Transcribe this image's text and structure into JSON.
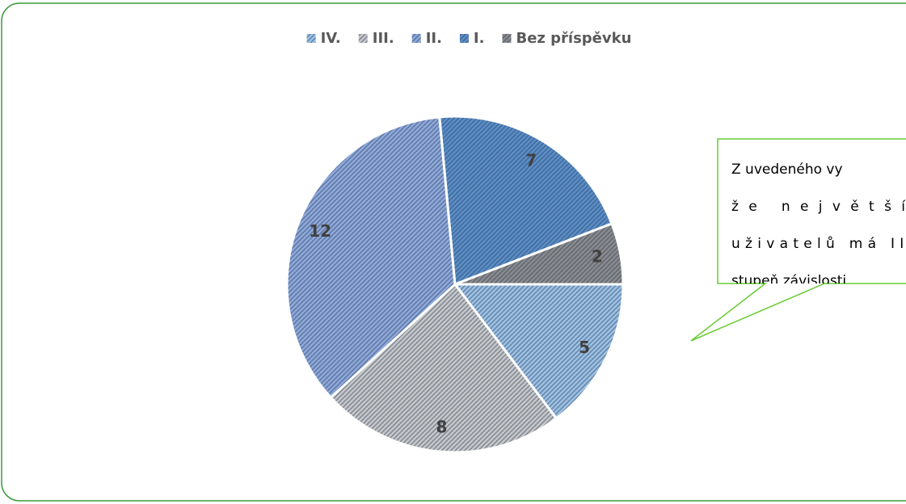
{
  "chart_data": {
    "type": "pie",
    "categories": [
      "IV.",
      "III.",
      "II.",
      "I.",
      "Bez příspěvku"
    ],
    "values": [
      5,
      8,
      12,
      7,
      2
    ],
    "colors": [
      "#9dc3e6",
      "#c9c9c9",
      "#8faadc",
      "#5b8fc9",
      "#8c8c8c"
    ],
    "legend": "top",
    "annotation": [
      "Z uvedeného vy",
      "že největší",
      "uživatelů má II.",
      "stupeň závislosti"
    ]
  }
}
